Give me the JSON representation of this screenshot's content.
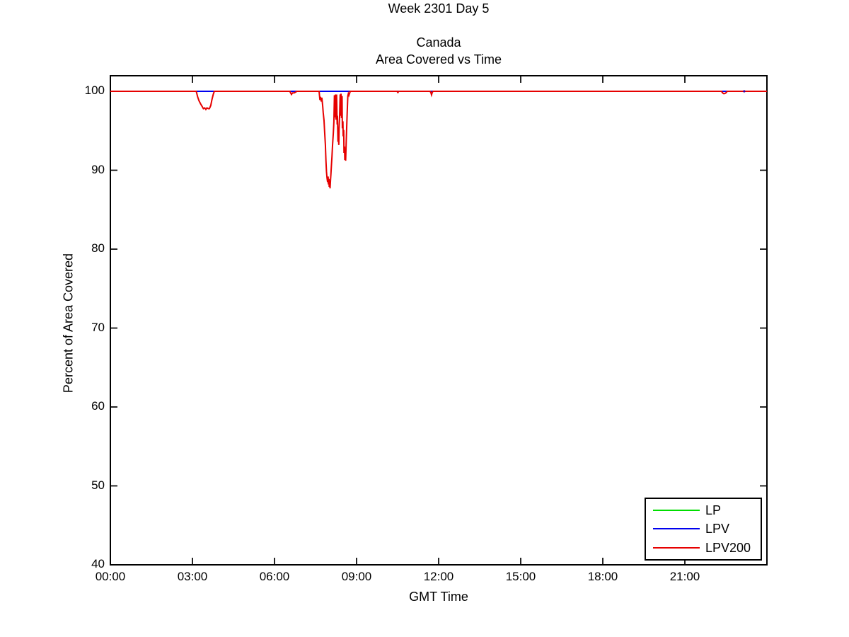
{
  "titles": {
    "line1": "Week 2301 Day 5",
    "line2": "Canada",
    "line3": "Area Covered vs Time"
  },
  "chart_data": {
    "type": "line",
    "title": "Week 2301 Day 5",
    "subtitle": "Canada\nArea Covered vs Time",
    "xlabel": "GMT Time",
    "ylabel": "Percent of Area Covered",
    "x_unit": "hours",
    "xlim_hours": [
      0,
      24
    ],
    "ylim": [
      40,
      102
    ],
    "grid": false,
    "x_ticks": [
      {
        "hour": 0,
        "label": "00:00"
      },
      {
        "hour": 3,
        "label": "03:00"
      },
      {
        "hour": 6,
        "label": "06:00"
      },
      {
        "hour": 9,
        "label": "09:00"
      },
      {
        "hour": 12,
        "label": "12:00"
      },
      {
        "hour": 15,
        "label": "15:00"
      },
      {
        "hour": 18,
        "label": "18:00"
      },
      {
        "hour": 21,
        "label": "21:00"
      }
    ],
    "y_ticks": [
      {
        "value": 40,
        "label": "40"
      },
      {
        "value": 50,
        "label": "50"
      },
      {
        "value": 60,
        "label": "60"
      },
      {
        "value": 70,
        "label": "70"
      },
      {
        "value": 80,
        "label": "80"
      },
      {
        "value": 90,
        "label": "90"
      },
      {
        "value": 100,
        "label": "100"
      }
    ],
    "legend": {
      "position": "lower-right",
      "entries": [
        {
          "label": "LP",
          "color": "#00dd00"
        },
        {
          "label": "LPV",
          "color": "#0000ee"
        },
        {
          "label": "LPV200",
          "color": "#e60000"
        }
      ]
    },
    "series": [
      {
        "name": "LP",
        "color": "#00dd00",
        "points": [
          [
            0,
            100
          ],
          [
            24,
            100
          ]
        ]
      },
      {
        "name": "LPV",
        "color": "#0000ee",
        "points": [
          [
            0,
            100
          ],
          [
            24,
            100
          ]
        ]
      },
      {
        "name": "LPV200",
        "color": "#e60000",
        "points": [
          [
            0,
            100
          ],
          [
            3.14,
            100
          ],
          [
            3.19,
            99.3
          ],
          [
            3.24,
            98.8
          ],
          [
            3.3,
            98.4
          ],
          [
            3.35,
            98.1
          ],
          [
            3.4,
            97.8
          ],
          [
            3.45,
            97.9
          ],
          [
            3.49,
            97.7
          ],
          [
            3.53,
            97.9
          ],
          [
            3.58,
            97.8
          ],
          [
            3.62,
            97.8
          ],
          [
            3.67,
            98.2
          ],
          [
            3.71,
            98.9
          ],
          [
            3.76,
            99.6
          ],
          [
            3.8,
            100
          ],
          [
            6.56,
            100
          ],
          [
            6.59,
            99.8
          ],
          [
            6.62,
            99.6
          ],
          [
            6.66,
            99.8
          ],
          [
            6.72,
            99.8
          ],
          [
            6.77,
            99.9
          ],
          [
            6.82,
            100
          ],
          [
            7.63,
            100
          ],
          [
            7.66,
            98.9
          ],
          [
            7.68,
            99.3
          ],
          [
            7.71,
            98.7
          ],
          [
            7.73,
            99.2
          ],
          [
            7.76,
            98.2
          ],
          [
            7.78,
            97.3
          ],
          [
            7.81,
            96.3
          ],
          [
            7.83,
            95.0
          ],
          [
            7.86,
            93.2
          ],
          [
            7.88,
            91.2
          ],
          [
            7.9,
            89.8
          ],
          [
            7.92,
            89.0
          ],
          [
            7.94,
            88.5
          ],
          [
            7.96,
            89.2
          ],
          [
            7.97,
            88.2
          ],
          [
            7.99,
            88.9
          ],
          [
            8.0,
            87.9
          ],
          [
            8.02,
            88.7
          ],
          [
            8.03,
            87.7
          ],
          [
            8.05,
            88.9
          ],
          [
            8.06,
            89.4
          ],
          [
            8.08,
            90.6
          ],
          [
            8.1,
            91.7
          ],
          [
            8.12,
            93.1
          ],
          [
            8.15,
            94.7
          ],
          [
            8.17,
            96.1
          ],
          [
            8.19,
            99.5
          ],
          [
            8.21,
            96.7
          ],
          [
            8.23,
            99.6
          ],
          [
            8.25,
            96.4
          ],
          [
            8.27,
            99.6
          ],
          [
            8.29,
            95.8
          ],
          [
            8.3,
            96.9
          ],
          [
            8.32,
            93.6
          ],
          [
            8.33,
            94.9
          ],
          [
            8.35,
            93.2
          ],
          [
            8.36,
            95.3
          ],
          [
            8.38,
            96.9
          ],
          [
            8.4,
            99.6
          ],
          [
            8.42,
            96.9
          ],
          [
            8.43,
            99.7
          ],
          [
            8.45,
            96.6
          ],
          [
            8.47,
            99.4
          ],
          [
            8.48,
            95.3
          ],
          [
            8.5,
            96.2
          ],
          [
            8.51,
            94.3
          ],
          [
            8.53,
            95.1
          ],
          [
            8.54,
            92.2
          ],
          [
            8.56,
            93.0
          ],
          [
            8.57,
            91.3
          ],
          [
            8.59,
            92.1
          ],
          [
            8.6,
            91.2
          ],
          [
            8.62,
            93.5
          ],
          [
            8.64,
            95.6
          ],
          [
            8.66,
            97.6
          ],
          [
            8.68,
            99.4
          ],
          [
            8.7,
            99.7
          ],
          [
            8.72,
            99.5
          ],
          [
            8.75,
            99.8
          ],
          [
            8.77,
            100
          ],
          [
            10.48,
            100
          ],
          [
            10.51,
            99.85
          ],
          [
            10.54,
            100
          ],
          [
            11.69,
            100
          ],
          [
            11.72,
            99.8
          ],
          [
            11.74,
            99.55
          ],
          [
            11.77,
            99.9
          ],
          [
            11.8,
            100
          ],
          [
            22.34,
            100
          ],
          [
            22.38,
            99.8
          ],
          [
            22.42,
            99.7
          ],
          [
            22.46,
            99.72
          ],
          [
            22.5,
            99.8
          ],
          [
            22.55,
            100
          ],
          [
            24,
            100
          ]
        ]
      }
    ],
    "annotations": [
      {
        "type": "dot",
        "hour": 23.17,
        "value": 100,
        "color": "#3300aa"
      }
    ]
  }
}
